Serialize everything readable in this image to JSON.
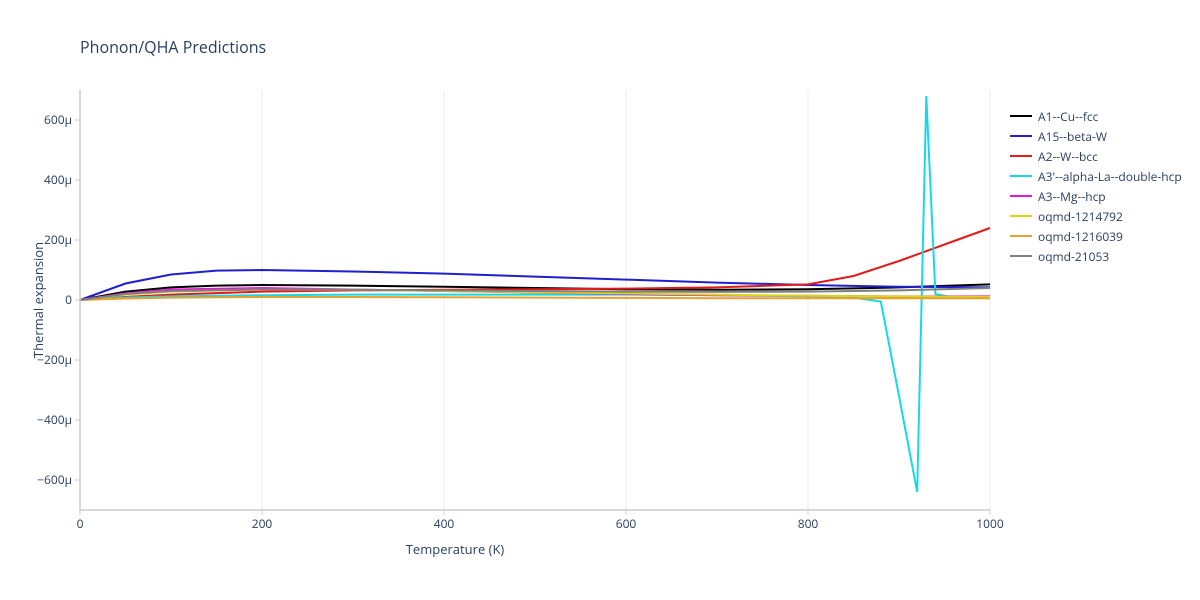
{
  "chart": {
    "title": "Phonon/QHA Predictions",
    "xlabel": "Temperature (K)",
    "ylabel": "Thermal expansion",
    "background_color": "#ffffff",
    "grid_color": "#eeeeee",
    "axis_color": "#cccccc",
    "text_color": "#2a3f5f",
    "title_fontsize": 16,
    "label_fontsize": 13,
    "tick_fontsize": 12,
    "xlim": [
      0,
      1000
    ],
    "ylim": [
      -700,
      700
    ],
    "xticks": [
      0,
      200,
      400,
      600,
      800,
      1000
    ],
    "yticks": [
      -600,
      -400,
      -200,
      0,
      200,
      400,
      600
    ],
    "ytick_suffix": "μ",
    "line_width": 2,
    "series": [
      {
        "name": "A1--Cu--fcc",
        "color": "#000000",
        "x": [
          0,
          50,
          100,
          150,
          200,
          300,
          400,
          500,
          600,
          700,
          800,
          900,
          1000
        ],
        "y": [
          0,
          28,
          42,
          48,
          50,
          48,
          44,
          40,
          36,
          34,
          36,
          42,
          52
        ]
      },
      {
        "name": "A15--beta-W",
        "color": "#1f1fcf",
        "x": [
          0,
          50,
          100,
          150,
          200,
          300,
          400,
          500,
          600,
          700,
          800,
          900,
          1000
        ],
        "y": [
          0,
          55,
          85,
          98,
          100,
          95,
          88,
          78,
          68,
          58,
          50,
          44,
          42
        ]
      },
      {
        "name": "A2--W--bcc",
        "color": "#e31a1a",
        "x": [
          0,
          50,
          100,
          200,
          300,
          400,
          500,
          600,
          700,
          800,
          850,
          900,
          950,
          1000
        ],
        "y": [
          0,
          10,
          18,
          28,
          32,
          34,
          36,
          38,
          42,
          52,
          80,
          130,
          185,
          240
        ]
      },
      {
        "name": "A3'--alpha-La--double-hcp",
        "color": "#17d8e8",
        "x": [
          0,
          50,
          100,
          200,
          300,
          400,
          500,
          600,
          700,
          800,
          850,
          880,
          900,
          920,
          930,
          940,
          960,
          1000
        ],
        "y": [
          0,
          8,
          12,
          16,
          18,
          18,
          18,
          18,
          16,
          12,
          8,
          -5,
          -320,
          -640,
          680,
          20,
          8,
          6
        ]
      },
      {
        "name": "A3--Mg--hcp",
        "color": "#e817d8",
        "x": [
          0,
          50,
          100,
          200,
          300,
          400,
          500,
          600,
          700,
          800,
          900,
          1000
        ],
        "y": [
          0,
          22,
          35,
          40,
          35,
          30,
          25,
          20,
          16,
          14,
          12,
          12
        ]
      },
      {
        "name": "oqmd-1214792",
        "color": "#d8d817",
        "x": [
          0,
          50,
          100,
          200,
          300,
          400,
          500,
          600,
          700,
          800,
          900,
          1000
        ],
        "y": [
          0,
          18,
          28,
          35,
          34,
          30,
          26,
          22,
          18,
          14,
          12,
          10
        ]
      },
      {
        "name": "oqmd-1216039",
        "color": "#e8a02f",
        "x": [
          0,
          50,
          100,
          200,
          300,
          400,
          500,
          600,
          700,
          800,
          900,
          1000
        ],
        "y": [
          0,
          5,
          8,
          10,
          10,
          9,
          8,
          7,
          6,
          6,
          6,
          6
        ]
      },
      {
        "name": "oqmd-21053",
        "color": "#808080",
        "x": [
          0,
          50,
          100,
          200,
          300,
          400,
          500,
          600,
          700,
          800,
          900,
          1000
        ],
        "y": [
          0,
          20,
          30,
          35,
          34,
          32,
          30,
          28,
          27,
          28,
          32,
          40
        ]
      }
    ]
  }
}
